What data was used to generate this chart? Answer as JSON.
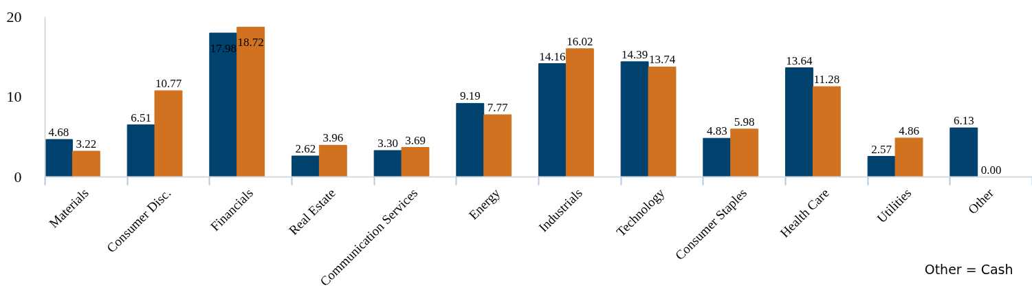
{
  "chart_data": {
    "type": "bar",
    "categories": [
      "Materials",
      "Consumer Disc.",
      "Financials",
      "Real Estate",
      "Communication Services",
      "Energy",
      "Industrials",
      "Technology",
      "Consumer Staples",
      "Health Care",
      "Utilities",
      "Other"
    ],
    "series": [
      {
        "color": "#00416e",
        "values": [
          4.68,
          6.51,
          17.98,
          2.62,
          3.3,
          9.19,
          14.16,
          14.39,
          4.83,
          13.64,
          2.57,
          6.13
        ],
        "value_labels": [
          "4.68",
          "6.51",
          "17.98",
          "2.62",
          "3.30",
          "9.19",
          "14.16",
          "14.39",
          "4.83",
          "13.64",
          "2.57",
          "6.13"
        ]
      },
      {
        "color": "#d07220",
        "values": [
          3.22,
          10.77,
          18.72,
          3.96,
          3.69,
          7.77,
          16.02,
          13.74,
          5.98,
          11.28,
          4.86,
          0.0
        ],
        "value_labels": [
          "3.22",
          "10.77",
          "18.72",
          "3.96",
          "3.69",
          "7.77",
          "16.02",
          "13.74",
          "5.98",
          "11.28",
          "4.86",
          "0.00"
        ]
      }
    ],
    "ylim": [
      0,
      20
    ],
    "yticks": [
      0,
      10,
      20
    ],
    "grid": false,
    "annotations": [
      "Other = Cash"
    ]
  }
}
